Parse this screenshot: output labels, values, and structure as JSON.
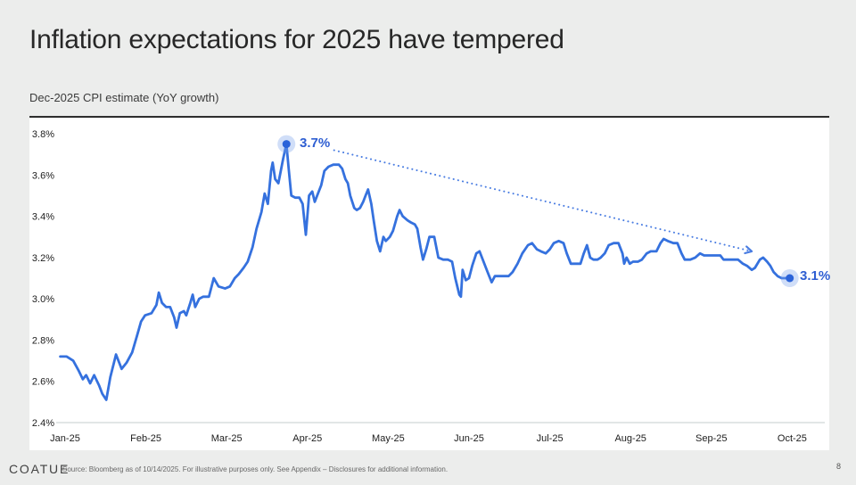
{
  "header": {
    "title": "Inflation expectations for 2025 have tempered"
  },
  "footer": {
    "logo": "COATUE",
    "source": "Source: Bloomberg as of 10/14/2025. For illustrative purposes only. See Appendix – Disclosures for additional information.",
    "page": "8"
  },
  "chart_data": {
    "type": "line",
    "title": "Dec-2025 CPI estimate (YoY growth)",
    "xlabel": "",
    "ylabel": "",
    "grid": false,
    "ylim": [
      2.4,
      3.8
    ],
    "y_step": 0.2,
    "y_tick_labels": [
      "3.8%",
      "3.6%",
      "3.4%",
      "3.2%",
      "3.0%",
      "2.8%",
      "2.6%",
      "2.4%"
    ],
    "x_tick_labels": [
      "Jan-25",
      "Feb-25",
      "Mar-25",
      "Apr-25",
      "May-25",
      "Jun-25",
      "Jul-25",
      "Aug-25",
      "Sep-25",
      "Oct-25"
    ],
    "line_color": "#3571de",
    "baseline_color": "#d9dddd",
    "marker_color": "#2b63d9",
    "marker_halo_color": "rgba(120,160,235,0.35)",
    "markers": [
      {
        "x": 2.74,
        "value": 3.75,
        "label": "3.7%"
      },
      {
        "x": 8.97,
        "value": 3.1,
        "label": "3.1%"
      }
    ],
    "trend_arrow": {
      "from": [
        3.33,
        3.72
      ],
      "to": [
        8.5,
        3.23
      ],
      "style": "dotted",
      "color": "#4a7de2"
    },
    "series": [
      {
        "name": "Dec-2025 CPI estimate (YoY growth)",
        "color": "#3571de",
        "points": [
          [
            -0.06,
            2.72
          ],
          [
            0.02,
            2.72
          ],
          [
            0.1,
            2.7
          ],
          [
            0.17,
            2.65
          ],
          [
            0.22,
            2.61
          ],
          [
            0.26,
            2.63
          ],
          [
            0.31,
            2.59
          ],
          [
            0.36,
            2.63
          ],
          [
            0.42,
            2.58
          ],
          [
            0.46,
            2.54
          ],
          [
            0.51,
            2.51
          ],
          [
            0.56,
            2.62
          ],
          [
            0.63,
            2.73
          ],
          [
            0.7,
            2.66
          ],
          [
            0.76,
            2.69
          ],
          [
            0.83,
            2.74
          ],
          [
            0.89,
            2.82
          ],
          [
            0.94,
            2.89
          ],
          [
            0.99,
            2.92
          ],
          [
            1.07,
            2.93
          ],
          [
            1.13,
            2.97
          ],
          [
            1.16,
            3.03
          ],
          [
            1.2,
            2.98
          ],
          [
            1.25,
            2.96
          ],
          [
            1.3,
            2.96
          ],
          [
            1.35,
            2.91
          ],
          [
            1.38,
            2.86
          ],
          [
            1.42,
            2.93
          ],
          [
            1.47,
            2.94
          ],
          [
            1.5,
            2.92
          ],
          [
            1.55,
            2.98
          ],
          [
            1.58,
            3.02
          ],
          [
            1.61,
            2.96
          ],
          [
            1.66,
            3.0
          ],
          [
            1.71,
            3.01
          ],
          [
            1.78,
            3.01
          ],
          [
            1.84,
            3.1
          ],
          [
            1.9,
            3.06
          ],
          [
            1.98,
            3.05
          ],
          [
            2.04,
            3.06
          ],
          [
            2.1,
            3.1
          ],
          [
            2.15,
            3.12
          ],
          [
            2.21,
            3.15
          ],
          [
            2.26,
            3.18
          ],
          [
            2.32,
            3.25
          ],
          [
            2.37,
            3.34
          ],
          [
            2.43,
            3.42
          ],
          [
            2.47,
            3.51
          ],
          [
            2.51,
            3.46
          ],
          [
            2.55,
            3.62
          ],
          [
            2.57,
            3.66
          ],
          [
            2.6,
            3.58
          ],
          [
            2.64,
            3.56
          ],
          [
            2.67,
            3.62
          ],
          [
            2.7,
            3.68
          ],
          [
            2.74,
            3.75
          ],
          [
            2.77,
            3.62
          ],
          [
            2.8,
            3.5
          ],
          [
            2.85,
            3.49
          ],
          [
            2.9,
            3.49
          ],
          [
            2.94,
            3.46
          ],
          [
            2.98,
            3.31
          ],
          [
            3.02,
            3.5
          ],
          [
            3.06,
            3.52
          ],
          [
            3.09,
            3.47
          ],
          [
            3.12,
            3.5
          ],
          [
            3.17,
            3.55
          ],
          [
            3.21,
            3.62
          ],
          [
            3.26,
            3.64
          ],
          [
            3.32,
            3.65
          ],
          [
            3.39,
            3.65
          ],
          [
            3.43,
            3.63
          ],
          [
            3.47,
            3.58
          ],
          [
            3.5,
            3.56
          ],
          [
            3.53,
            3.5
          ],
          [
            3.58,
            3.44
          ],
          [
            3.61,
            3.43
          ],
          [
            3.65,
            3.44
          ],
          [
            3.69,
            3.47
          ],
          [
            3.72,
            3.5
          ],
          [
            3.75,
            3.53
          ],
          [
            3.79,
            3.46
          ],
          [
            3.82,
            3.38
          ],
          [
            3.86,
            3.28
          ],
          [
            3.9,
            3.23
          ],
          [
            3.94,
            3.3
          ],
          [
            3.97,
            3.28
          ],
          [
            4.02,
            3.3
          ],
          [
            4.06,
            3.33
          ],
          [
            4.11,
            3.4
          ],
          [
            4.14,
            3.43
          ],
          [
            4.18,
            3.4
          ],
          [
            4.24,
            3.38
          ],
          [
            4.28,
            3.37
          ],
          [
            4.33,
            3.36
          ],
          [
            4.36,
            3.34
          ],
          [
            4.4,
            3.25
          ],
          [
            4.43,
            3.19
          ],
          [
            4.47,
            3.24
          ],
          [
            4.51,
            3.3
          ],
          [
            4.57,
            3.3
          ],
          [
            4.62,
            3.2
          ],
          [
            4.68,
            3.19
          ],
          [
            4.74,
            3.19
          ],
          [
            4.79,
            3.18
          ],
          [
            4.83,
            3.1
          ],
          [
            4.88,
            3.02
          ],
          [
            4.9,
            3.01
          ],
          [
            4.92,
            3.14
          ],
          [
            4.96,
            3.09
          ],
          [
            5.0,
            3.1
          ],
          [
            5.04,
            3.16
          ],
          [
            5.09,
            3.22
          ],
          [
            5.13,
            3.23
          ],
          [
            5.18,
            3.18
          ],
          [
            5.23,
            3.13
          ],
          [
            5.28,
            3.08
          ],
          [
            5.32,
            3.11
          ],
          [
            5.4,
            3.11
          ],
          [
            5.49,
            3.11
          ],
          [
            5.54,
            3.13
          ],
          [
            5.6,
            3.17
          ],
          [
            5.66,
            3.22
          ],
          [
            5.73,
            3.26
          ],
          [
            5.78,
            3.27
          ],
          [
            5.84,
            3.24
          ],
          [
            5.89,
            3.23
          ],
          [
            5.95,
            3.22
          ],
          [
            6.0,
            3.24
          ],
          [
            6.05,
            3.27
          ],
          [
            6.11,
            3.28
          ],
          [
            6.17,
            3.27
          ],
          [
            6.21,
            3.22
          ],
          [
            6.26,
            3.17
          ],
          [
            6.32,
            3.17
          ],
          [
            6.38,
            3.17
          ],
          [
            6.42,
            3.22
          ],
          [
            6.46,
            3.26
          ],
          [
            6.5,
            3.2
          ],
          [
            6.54,
            3.19
          ],
          [
            6.59,
            3.19
          ],
          [
            6.63,
            3.2
          ],
          [
            6.68,
            3.22
          ],
          [
            6.73,
            3.26
          ],
          [
            6.79,
            3.27
          ],
          [
            6.85,
            3.27
          ],
          [
            6.9,
            3.22
          ],
          [
            6.92,
            3.17
          ],
          [
            6.95,
            3.2
          ],
          [
            6.99,
            3.17
          ],
          [
            7.03,
            3.18
          ],
          [
            7.09,
            3.18
          ],
          [
            7.14,
            3.19
          ],
          [
            7.2,
            3.22
          ],
          [
            7.25,
            3.23
          ],
          [
            7.32,
            3.23
          ],
          [
            7.37,
            3.27
          ],
          [
            7.41,
            3.29
          ],
          [
            7.46,
            3.28
          ],
          [
            7.53,
            3.27
          ],
          [
            7.58,
            3.27
          ],
          [
            7.63,
            3.22
          ],
          [
            7.67,
            3.19
          ],
          [
            7.74,
            3.19
          ],
          [
            7.8,
            3.2
          ],
          [
            7.86,
            3.22
          ],
          [
            7.91,
            3.21
          ],
          [
            7.98,
            3.21
          ],
          [
            8.05,
            3.21
          ],
          [
            8.11,
            3.21
          ],
          [
            8.15,
            3.19
          ],
          [
            8.2,
            3.19
          ],
          [
            8.27,
            3.19
          ],
          [
            8.33,
            3.19
          ],
          [
            8.39,
            3.17
          ],
          [
            8.44,
            3.16
          ],
          [
            8.5,
            3.14
          ],
          [
            8.54,
            3.15
          ],
          [
            8.6,
            3.19
          ],
          [
            8.64,
            3.2
          ],
          [
            8.69,
            3.18
          ],
          [
            8.73,
            3.16
          ],
          [
            8.77,
            3.13
          ],
          [
            8.82,
            3.11
          ],
          [
            8.87,
            3.1
          ],
          [
            8.93,
            3.1
          ],
          [
            8.97,
            3.1
          ]
        ]
      }
    ]
  }
}
